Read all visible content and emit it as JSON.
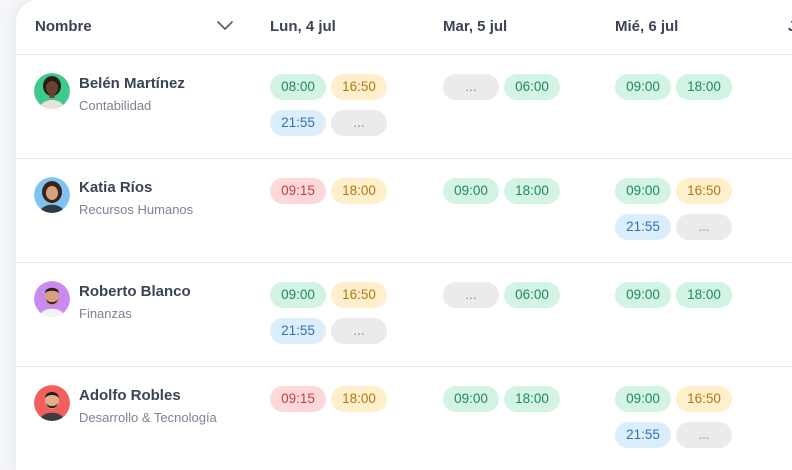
{
  "header": {
    "name_col": "Nombre",
    "days": [
      "Lun, 4 jul",
      "Mar, 5 jul",
      "Mié, 6 jul"
    ],
    "cut_day": "J"
  },
  "rows": [
    {
      "name": "Belén Martínez",
      "dept": "Contabilidad",
      "days": [
        [
          {
            "t": "08:00",
            "c": "green"
          },
          {
            "t": "16:50",
            "c": "orange"
          },
          {
            "t": "21:55",
            "c": "blue"
          },
          {
            "t": "...",
            "c": "gray"
          }
        ],
        [
          {
            "t": "...",
            "c": "gray"
          },
          {
            "t": "06:00",
            "c": "green"
          }
        ],
        [
          {
            "t": "09:00",
            "c": "green"
          },
          {
            "t": "18:00",
            "c": "green"
          }
        ]
      ]
    },
    {
      "name": "Katia Ríos",
      "dept": "Recursos Humanos",
      "days": [
        [
          {
            "t": "09:15",
            "c": "red"
          },
          {
            "t": "18:00",
            "c": "orange"
          }
        ],
        [
          {
            "t": "09:00",
            "c": "green"
          },
          {
            "t": "18:00",
            "c": "green"
          }
        ],
        [
          {
            "t": "09:00",
            "c": "green"
          },
          {
            "t": "16:50",
            "c": "orange"
          },
          {
            "t": "21:55",
            "c": "blue"
          },
          {
            "t": "...",
            "c": "gray"
          }
        ]
      ]
    },
    {
      "name": "Roberto Blanco",
      "dept": "Finanzas",
      "days": [
        [
          {
            "t": "09:00",
            "c": "green"
          },
          {
            "t": "16:50",
            "c": "orange"
          },
          {
            "t": "21:55",
            "c": "blue"
          },
          {
            "t": "...",
            "c": "gray"
          }
        ],
        [
          {
            "t": "...",
            "c": "gray"
          },
          {
            "t": "06:00",
            "c": "green"
          }
        ],
        [
          {
            "t": "09:00",
            "c": "green"
          },
          {
            "t": "18:00",
            "c": "green"
          }
        ]
      ]
    },
    {
      "name": "Adolfo Robles",
      "dept": "Desarrollo & Tecnología",
      "days": [
        [
          {
            "t": "09:15",
            "c": "red"
          },
          {
            "t": "18:00",
            "c": "orange"
          }
        ],
        [
          {
            "t": "09:00",
            "c": "green"
          },
          {
            "t": "18:00",
            "c": "green"
          }
        ],
        [
          {
            "t": "09:00",
            "c": "green"
          },
          {
            "t": "16:50",
            "c": "orange"
          },
          {
            "t": "21:55",
            "c": "blue"
          },
          {
            "t": "...",
            "c": "gray"
          }
        ]
      ]
    }
  ],
  "colors": {
    "green_chip": "#d3f3e4",
    "orange_chip": "#ffefcc",
    "blue_chip": "#dcedfb",
    "red_chip": "#ffd9d9",
    "gray_chip": "#ebebeb"
  }
}
